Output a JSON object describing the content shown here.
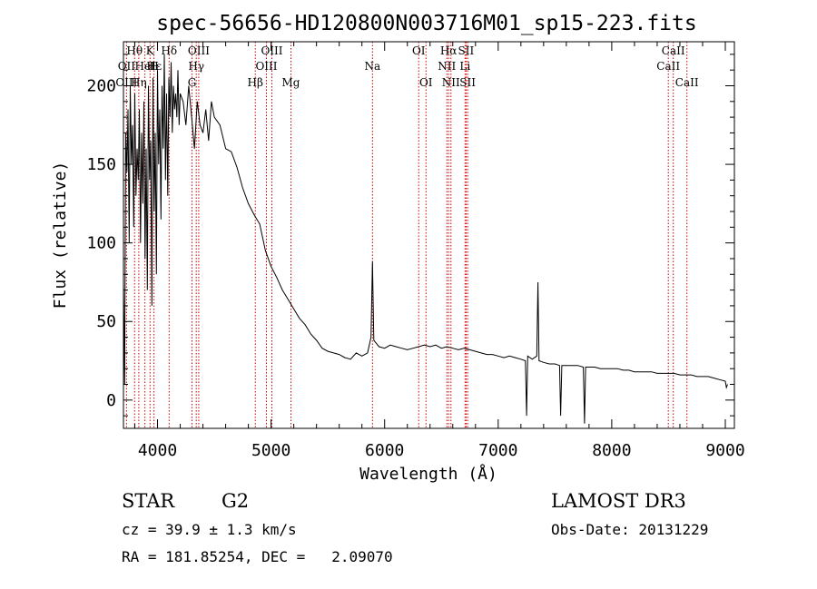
{
  "chart_data": {
    "type": "line",
    "title": "spec-56656-HD120800N003716M01_sp15-223.fits",
    "xlabel": "Wavelength (Å)",
    "ylabel": "Flux (relative)",
    "xlim": [
      3700,
      9080
    ],
    "ylim": [
      -18,
      228
    ],
    "xticks": [
      4000,
      5000,
      6000,
      7000,
      8000,
      9000
    ],
    "yticks": [
      0,
      50,
      100,
      150,
      200
    ],
    "spectral_lines": [
      {
        "name": "Hθ",
        "wavelength": 3798,
        "row": 0
      },
      {
        "name": "OII",
        "wavelength": 3727,
        "row": 1
      },
      {
        "name": "OIII",
        "wavelength": 3727,
        "row": 2
      },
      {
        "name": "K",
        "wavelength": 3934,
        "row": 0
      },
      {
        "name": "HeI",
        "wavelength": 3889,
        "row": 1
      },
      {
        "name": "Hη",
        "wavelength": 3835,
        "row": 2
      },
      {
        "name": "H",
        "wavelength": 3969,
        "row": 1
      },
      {
        "name": "Hδ",
        "wavelength": 4102,
        "row": 0
      },
      {
        "name": "Hε",
        "wavelength": 3970,
        "row": 1
      },
      {
        "name": "OIII",
        "wavelength": 4363,
        "row": 0
      },
      {
        "name": "Hγ",
        "wavelength": 4341,
        "row": 1
      },
      {
        "name": "G",
        "wavelength": 4304,
        "row": 2
      },
      {
        "name": "OIII",
        "wavelength": 5007,
        "row": 0
      },
      {
        "name": "OIII",
        "wavelength": 4959,
        "row": 1
      },
      {
        "name": "Hβ",
        "wavelength": 4861,
        "row": 2
      },
      {
        "name": "Mg",
        "wavelength": 5175,
        "row": 2
      },
      {
        "name": "Na",
        "wavelength": 5893,
        "row": 1
      },
      {
        "name": "OI",
        "wavelength": 6300,
        "row": 0
      },
      {
        "name": "OI",
        "wavelength": 6364,
        "row": 2
      },
      {
        "name": "Hα",
        "wavelength": 6563,
        "row": 0
      },
      {
        "name": "NII",
        "wavelength": 6548,
        "row": 1
      },
      {
        "name": "NII",
        "wavelength": 6584,
        "row": 2
      },
      {
        "name": "SII",
        "wavelength": 6717,
        "row": 0
      },
      {
        "name": "Li",
        "wavelength": 6708,
        "row": 1
      },
      {
        "name": "SII",
        "wavelength": 6731,
        "row": 2
      },
      {
        "name": "CaII",
        "wavelength": 8542,
        "row": 0
      },
      {
        "name": "CaII",
        "wavelength": 8498,
        "row": 1
      },
      {
        "name": "CaII",
        "wavelength": 8662,
        "row": 2
      }
    ],
    "series": [
      {
        "x": [
          3700,
          3710,
          3720,
          3730,
          3740,
          3750,
          3760,
          3770,
          3780,
          3790,
          3800,
          3810,
          3820,
          3830,
          3840,
          3850,
          3860,
          3870,
          3880,
          3890,
          3900,
          3910,
          3920,
          3930,
          3940,
          3950,
          3960,
          3970,
          3980,
          3990,
          4000,
          4010,
          4020,
          4030,
          4040,
          4050,
          4060,
          4070,
          4080,
          4090,
          4100,
          4110,
          4120,
          4130,
          4140,
          4150,
          4160,
          4170,
          4180,
          4190,
          4200,
          4225,
          4250,
          4275,
          4300,
          4325,
          4350,
          4375,
          4400,
          4425,
          4450,
          4475,
          4500,
          4550,
          4600,
          4650,
          4700,
          4750,
          4800,
          4850,
          4900,
          4950,
          5000,
          5050,
          5100,
          5150,
          5200,
          5250,
          5300,
          5350,
          5400,
          5450,
          5500,
          5550,
          5600,
          5650,
          5700,
          5750,
          5800,
          5850,
          5880,
          5893,
          5905,
          5950,
          6000,
          6050,
          6100,
          6150,
          6200,
          6250,
          6300,
          6350,
          6400,
          6450,
          6500,
          6550,
          6600,
          6650,
          6700,
          6750,
          6800,
          6850,
          6900,
          6950,
          7000,
          7050,
          7100,
          7150,
          7200,
          7240,
          7250,
          7260,
          7300,
          7340,
          7350,
          7360,
          7400,
          7450,
          7500,
          7540,
          7550,
          7560,
          7600,
          7650,
          7700,
          7750,
          7760,
          7770,
          7800,
          7850,
          7900,
          7950,
          8000,
          8050,
          8100,
          8150,
          8200,
          8250,
          8300,
          8350,
          8400,
          8450,
          8500,
          8550,
          8600,
          8650,
          8700,
          8750,
          8800,
          8850,
          8900,
          8950,
          9000,
          9010,
          9020
        ],
        "y": [
          75,
          10,
          170,
          145,
          185,
          100,
          200,
          150,
          175,
          110,
          195,
          130,
          160,
          140,
          185,
          100,
          170,
          125,
          190,
          90,
          160,
          70,
          200,
          140,
          165,
          60,
          205,
          120,
          170,
          80,
          210,
          150,
          185,
          115,
          200,
          160,
          220,
          140,
          195,
          130,
          205,
          180,
          215,
          170,
          200,
          185,
          195,
          180,
          210,
          175,
          195,
          190,
          175,
          200,
          180,
          160,
          190,
          175,
          170,
          185,
          165,
          190,
          180,
          175,
          160,
          158,
          148,
          135,
          125,
          118,
          112,
          95,
          85,
          78,
          70,
          64,
          58,
          52,
          48,
          42,
          38,
          33,
          31,
          30,
          29,
          27,
          26,
          30,
          28,
          30,
          40,
          88,
          38,
          34,
          33,
          35,
          34,
          33,
          32,
          33,
          34,
          35,
          34,
          35,
          33,
          34,
          33,
          32,
          33,
          32,
          31,
          30,
          29,
          29,
          28,
          27,
          28,
          27,
          26,
          25,
          -10,
          28,
          26,
          28,
          75,
          25,
          24,
          23,
          23,
          22,
          -10,
          22,
          22,
          22,
          22,
          21,
          -15,
          21,
          21,
          21,
          20,
          20,
          20,
          20,
          19,
          19,
          18,
          18,
          18,
          18,
          17,
          17,
          17,
          17,
          16,
          16,
          16,
          15,
          15,
          15,
          14,
          13,
          12,
          8,
          10
        ]
      }
    ]
  },
  "info": {
    "object_class": "STAR",
    "subclass": "G2",
    "survey": "LAMOST DR3",
    "redshift_line": "cz = 39.9 ± 1.3 km/s",
    "obs_date": "Obs-Date: 20131229",
    "coords": "RA = 181.85254, DEC =   2.09070"
  },
  "colors": {
    "spectrum": "#000000",
    "line_marker": "#cc0000"
  }
}
